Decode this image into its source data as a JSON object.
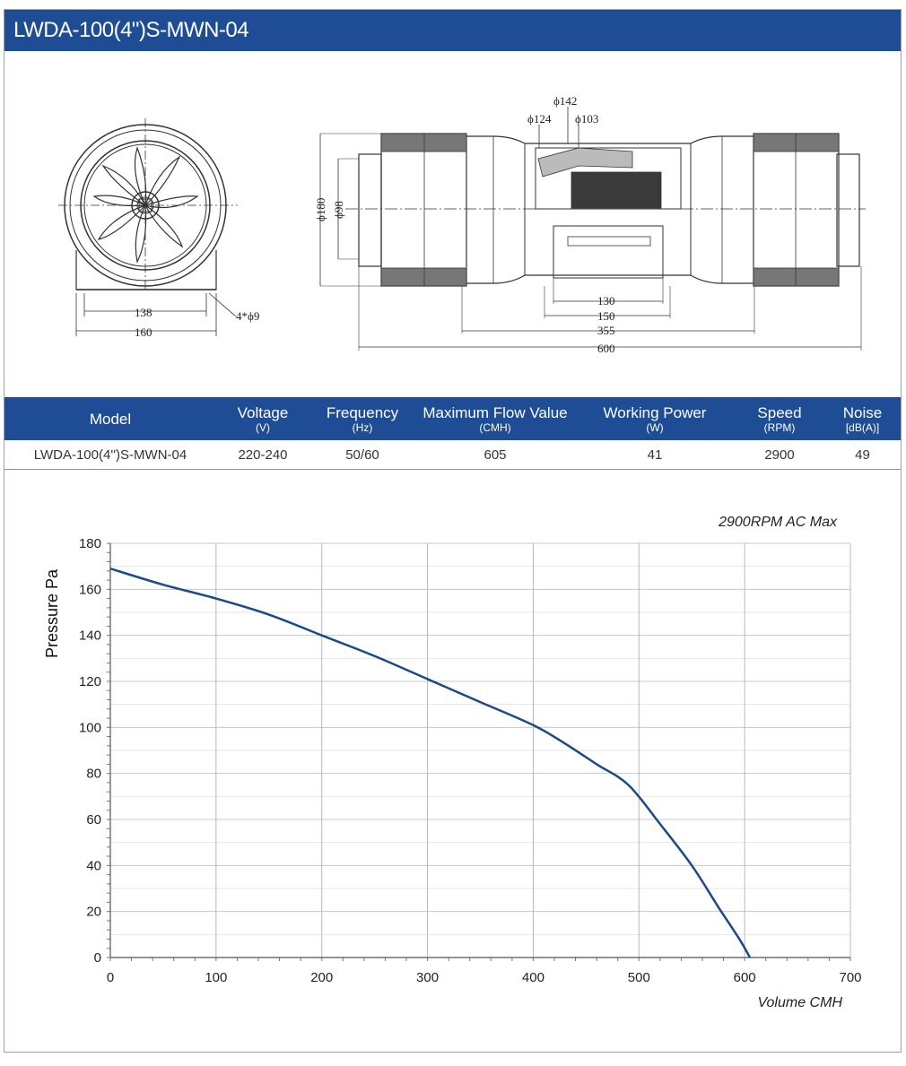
{
  "header": {
    "title": "LWDA-100(4\")S-MWN-04"
  },
  "drawing": {
    "front_dims": {
      "inner": "138",
      "outer": "160",
      "holes": "4*ϕ9"
    },
    "side_dims": {
      "d142": "ϕ142",
      "d124": "ϕ124",
      "d103": "ϕ103",
      "d180": "ϕ180",
      "d98": "ϕ98",
      "l130": "130",
      "l150": "150",
      "l355": "355",
      "l600": "600"
    }
  },
  "table": {
    "headers": [
      {
        "label": "Model",
        "unit": ""
      },
      {
        "label": "Voltage",
        "unit": "(V)"
      },
      {
        "label": "Frequency",
        "unit": "(Hz)"
      },
      {
        "label": "Maximum Flow Value",
        "unit": "(CMH)"
      },
      {
        "label": "Working Power",
        "unit": "(W)"
      },
      {
        "label": "Speed",
        "unit": "(RPM)"
      },
      {
        "label": "Noise",
        "unit": "[dB(A)]"
      }
    ],
    "row": [
      "LWDA-100(4'')S-MWN-04",
      "220-240",
      "50/60",
      "605",
      "41",
      "2900",
      "49"
    ]
  },
  "chart_data": {
    "type": "line",
    "title": "2900RPM AC Max",
    "xlabel": "Volume CMH",
    "ylabel": "Pressure  Pa",
    "xlim": [
      0,
      700
    ],
    "ylim": [
      0,
      180
    ],
    "x_ticks": [
      "0",
      "100",
      "200",
      "300",
      "400",
      "500",
      "600",
      "700"
    ],
    "y_ticks": [
      "0",
      "20",
      "40",
      "60",
      "80",
      "100",
      "120",
      "140",
      "160",
      "180"
    ],
    "grid": true,
    "line_color": "#1c4a86",
    "series": [
      {
        "x": [
          0,
          50,
          100,
          150,
          200,
          250,
          300,
          350,
          400,
          430,
          460,
          490,
          520,
          550,
          575,
          595,
          605
        ],
        "y": [
          169,
          162,
          156,
          149,
          140,
          131,
          121,
          111,
          101,
          93,
          84,
          75,
          58,
          40,
          22,
          8,
          0
        ]
      }
    ]
  }
}
